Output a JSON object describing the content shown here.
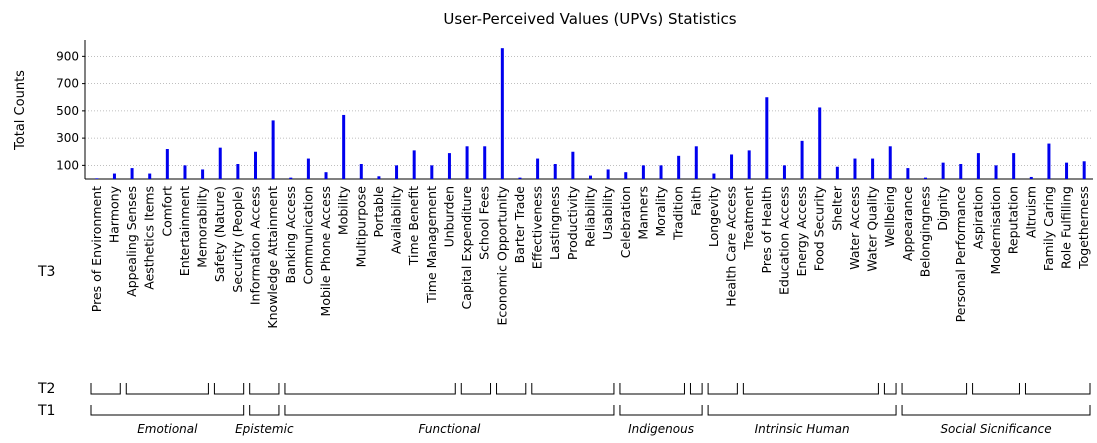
{
  "chart_data": {
    "type": "bar",
    "title": "User-Perceived Values (UPVs) Statistics",
    "y_label": "Total Counts",
    "categories": [
      "Pres of Environment",
      "Harmony",
      "Appealing Senses",
      "Aesthetics Items",
      "Comfort",
      "Entertainment",
      "Memorability",
      "Safety (Nature)",
      "Security (People)",
      "Information Access",
      "Knowledge Attainment",
      "Banking Access",
      "Communication",
      "Mobile Phone Access",
      "Mobility",
      "Multipurpose",
      "Portable",
      "Availability",
      "Time Benefit",
      "Time Management",
      "Unburden",
      "Capital Expenditure",
      "School Fees",
      "Economic Opportunity",
      "Barter Trade",
      "Effectiveness",
      "Lastingness",
      "Productivity",
      "Reliability",
      "Usability",
      "Celebration",
      "Manners",
      "Morality",
      "Tradition",
      "Faith",
      "Longevity",
      "Health Care Access",
      "Treatment",
      "Pres of Health",
      "Education Access",
      "Energy Access",
      "Food Security",
      "Shelter",
      "Water Access",
      "Water Quality",
      "Wellbeing",
      "Appearance",
      "Belongingness",
      "Dignity",
      "Personal Performance",
      "Aspiration",
      "Modernisation",
      "Reputation",
      "Altruism",
      "Family Caring",
      "Role Fulfilling",
      "Togetherness"
    ],
    "values": [
      5,
      40,
      80,
      40,
      220,
      100,
      70,
      230,
      110,
      200,
      430,
      10,
      150,
      50,
      470,
      110,
      20,
      100,
      210,
      100,
      190,
      240,
      240,
      960,
      10,
      150,
      110,
      200,
      25,
      70,
      50,
      100,
      100,
      170,
      240,
      40,
      180,
      210,
      600,
      100,
      280,
      525,
      90,
      150,
      150,
      240,
      80,
      10,
      120,
      110,
      190,
      100,
      190,
      15,
      260,
      120,
      130
    ],
    "color": "#0000ee",
    "ylim": [
      0,
      1020
    ],
    "yticks": [
      100,
      300,
      500,
      700,
      900
    ],
    "grid": true,
    "level_labels": [
      "T3",
      "T2",
      "T1"
    ],
    "t2_sizes": [
      2,
      5,
      2,
      2,
      10,
      2,
      2,
      5,
      4,
      1,
      2,
      8,
      1,
      4,
      3,
      4
    ],
    "t1_groups": [
      {
        "label": "Emotional",
        "size": 9
      },
      {
        "label": "Epistemic",
        "size": 2
      },
      {
        "label": "Functional",
        "size": 19
      },
      {
        "label": "Indigenous",
        "size": 5
      },
      {
        "label": "Intrinsic Human",
        "size": 11
      },
      {
        "label": "Social Sicnificance",
        "size": 11
      }
    ]
  }
}
